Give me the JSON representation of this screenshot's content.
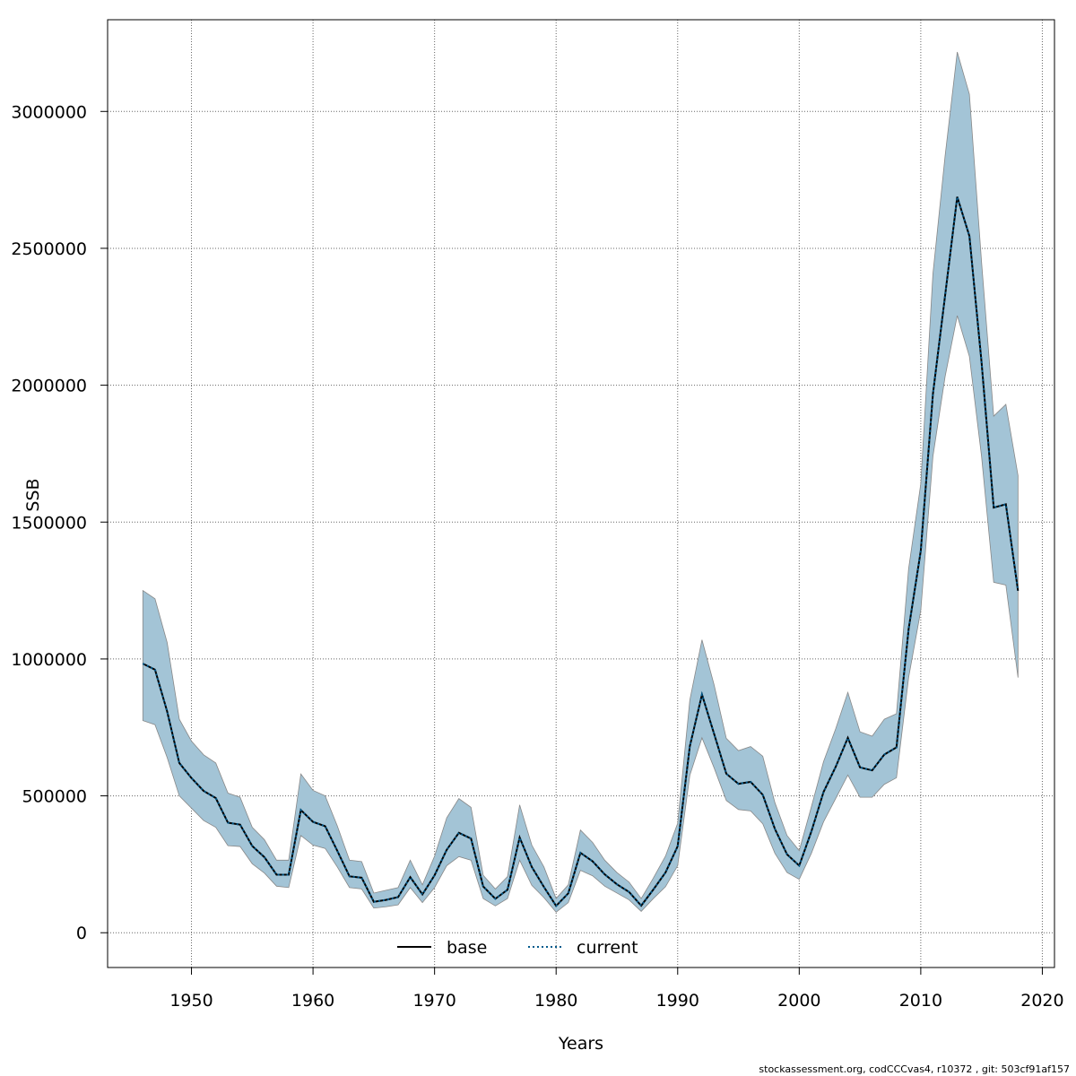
{
  "chart_data": {
    "type": "line",
    "title": "",
    "xlabel": "Years",
    "ylabel": "SSB",
    "xlim": [
      1943.1,
      2021.0
    ],
    "ylim": [
      -127000,
      3335000
    ],
    "xticks": [
      1950,
      1960,
      1970,
      1980,
      1990,
      2000,
      2010,
      2020
    ],
    "yticks": [
      0,
      500000,
      1000000,
      1500000,
      2000000,
      2500000,
      3000000
    ],
    "xtick_labels": [
      "1950",
      "1960",
      "1970",
      "1980",
      "1990",
      "2000",
      "2010",
      "2020"
    ],
    "ytick_labels": [
      "0",
      "500000",
      "1000000",
      "1500000",
      "2000000",
      "2500000",
      "3000000"
    ],
    "grid": true,
    "legend_position": "bottom",
    "colors": {
      "band": "#a3c4d6",
      "band_edge": "#888888",
      "base": "#000000",
      "current": "#005a8c",
      "grid": "#666666"
    },
    "x": [
      1946,
      1947,
      1948,
      1949,
      1950,
      1951,
      1952,
      1953,
      1954,
      1955,
      1956,
      1957,
      1958,
      1959,
      1960,
      1961,
      1962,
      1963,
      1964,
      1965,
      1966,
      1967,
      1968,
      1969,
      1970,
      1971,
      1972,
      1973,
      1974,
      1975,
      1976,
      1977,
      1978,
      1979,
      1980,
      1981,
      1982,
      1983,
      1984,
      1985,
      1986,
      1987,
      1988,
      1989,
      1990,
      1991,
      1992,
      1993,
      1994,
      1995,
      1996,
      1997,
      1998,
      1999,
      2000,
      2001,
      2002,
      2003,
      2004,
      2005,
      2006,
      2007,
      2008,
      2009,
      2010,
      2011,
      2012,
      2013,
      2014,
      2015,
      2016,
      2017,
      2018
    ],
    "series": [
      {
        "name": "base",
        "style": "solid",
        "values": [
          983000,
          961000,
          808000,
          620000,
          565000,
          518000,
          492000,
          402000,
          395000,
          317000,
          276000,
          212000,
          212000,
          448000,
          405000,
          389000,
          299000,
          206000,
          201000,
          113000,
          120000,
          130000,
          203000,
          140000,
          210000,
          303000,
          365000,
          344000,
          169000,
          124000,
          157000,
          348000,
          240000,
          167000,
          98000,
          144000,
          292000,
          261000,
          213000,
          177000,
          149000,
          99000,
          158000,
          220000,
          316000,
          681000,
          870000,
          726000,
          581000,
          544000,
          551000,
          504000,
          379000,
          286000,
          245000,
          370000,
          514000,
          606000,
          712000,
          604000,
          593000,
          651000,
          677000,
          1109000,
          1395000,
          1968000,
          2327000,
          2688000,
          2545000,
          2084000,
          1553000,
          1565000,
          1249000
        ]
      },
      {
        "name": "current",
        "style": "dotted",
        "values": [
          983000,
          961000,
          808000,
          620000,
          565000,
          518000,
          492000,
          402000,
          395000,
          317000,
          276000,
          212000,
          212000,
          448000,
          405000,
          389000,
          299000,
          206000,
          201000,
          113000,
          120000,
          130000,
          203000,
          140000,
          210000,
          303000,
          365000,
          344000,
          169000,
          124000,
          157000,
          348000,
          240000,
          167000,
          98000,
          144000,
          292000,
          261000,
          213000,
          177000,
          149000,
          99000,
          158000,
          220000,
          316000,
          681000,
          870000,
          726000,
          581000,
          544000,
          551000,
          504000,
          379000,
          286000,
          245000,
          370000,
          514000,
          606000,
          712000,
          604000,
          593000,
          651000,
          677000,
          1109000,
          1395000,
          1968000,
          2327000,
          2688000,
          2545000,
          2084000,
          1553000,
          1565000,
          1249000
        ]
      }
    ],
    "band_upper": [
      1250000,
      1220000,
      1060000,
      780000,
      700000,
      650000,
      620000,
      510000,
      495000,
      385000,
      340000,
      265000,
      265000,
      580000,
      520000,
      500000,
      390000,
      265000,
      260000,
      145000,
      155000,
      165000,
      265000,
      175000,
      280000,
      420000,
      490000,
      458000,
      210000,
      160000,
      205000,
      467000,
      320000,
      240000,
      125000,
      175000,
      375000,
      330000,
      265000,
      220000,
      185000,
      125000,
      200000,
      280000,
      400000,
      850000,
      1070000,
      905000,
      710000,
      665000,
      680000,
      645000,
      475000,
      355000,
      300000,
      460000,
      625000,
      745000,
      878000,
      734000,
      718000,
      780000,
      800000,
      1330000,
      1640000,
      2407000,
      2837000,
      3217000,
      3063000,
      2450000,
      1887000,
      1930000,
      1670000
    ],
    "band_lower": [
      775000,
      760000,
      640000,
      500000,
      455000,
      410000,
      385000,
      318000,
      315000,
      252000,
      218000,
      170000,
      165000,
      355000,
      320000,
      308000,
      240000,
      165000,
      160000,
      90000,
      95000,
      102000,
      165000,
      110000,
      165000,
      245000,
      278000,
      265000,
      125000,
      98000,
      125000,
      265000,
      173000,
      128000,
      75000,
      110000,
      228000,
      208000,
      170000,
      145000,
      120000,
      78000,
      125000,
      168000,
      245000,
      575000,
      712000,
      602000,
      483000,
      450000,
      445000,
      398000,
      290000,
      220000,
      195000,
      290000,
      405000,
      490000,
      576000,
      495000,
      495000,
      542000,
      566000,
      932000,
      1177000,
      1740000,
      2031000,
      2254000,
      2105000,
      1740000,
      1280000,
      1270000,
      932000
    ],
    "legend": [
      "base",
      "current"
    ]
  },
  "footer_text": "stockassessment.org, codCCCvas4, r10372 , git: 503cf91af157"
}
